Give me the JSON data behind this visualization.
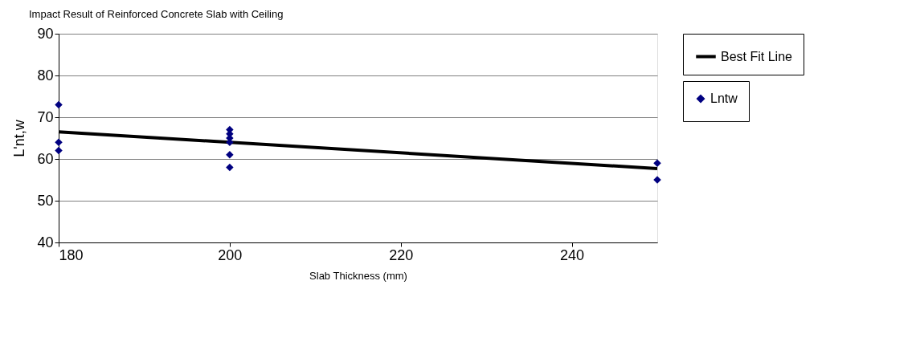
{
  "chart_data": {
    "type": "scatter",
    "title": "Impact Result of Reinforced Concrete Slab with Ceiling",
    "xlabel": "Slab Thickness (mm)",
    "ylabel": "L'nt,w",
    "series": [
      {
        "name": "Lntw",
        "marker": "diamond",
        "color": "#000080",
        "x": [
          180,
          180,
          180,
          200,
          200,
          200,
          200,
          200,
          200,
          250,
          250
        ],
        "values": [
          73,
          64,
          62,
          67,
          66,
          65,
          64,
          61,
          58,
          59,
          55
        ]
      },
      {
        "name": "Best Fit Line",
        "type": "line",
        "marker": "none",
        "color": "#000000",
        "x": [
          180,
          250
        ],
        "values": [
          66.5,
          57.7
        ]
      }
    ],
    "xlim": [
      180,
      250
    ],
    "xticks": [
      180,
      200,
      220,
      240
    ],
    "ylim": [
      40,
      90
    ],
    "yticks": [
      40,
      50,
      60,
      70,
      80,
      90
    ],
    "grid": "y",
    "legend": "right",
    "line_style": "solid"
  }
}
